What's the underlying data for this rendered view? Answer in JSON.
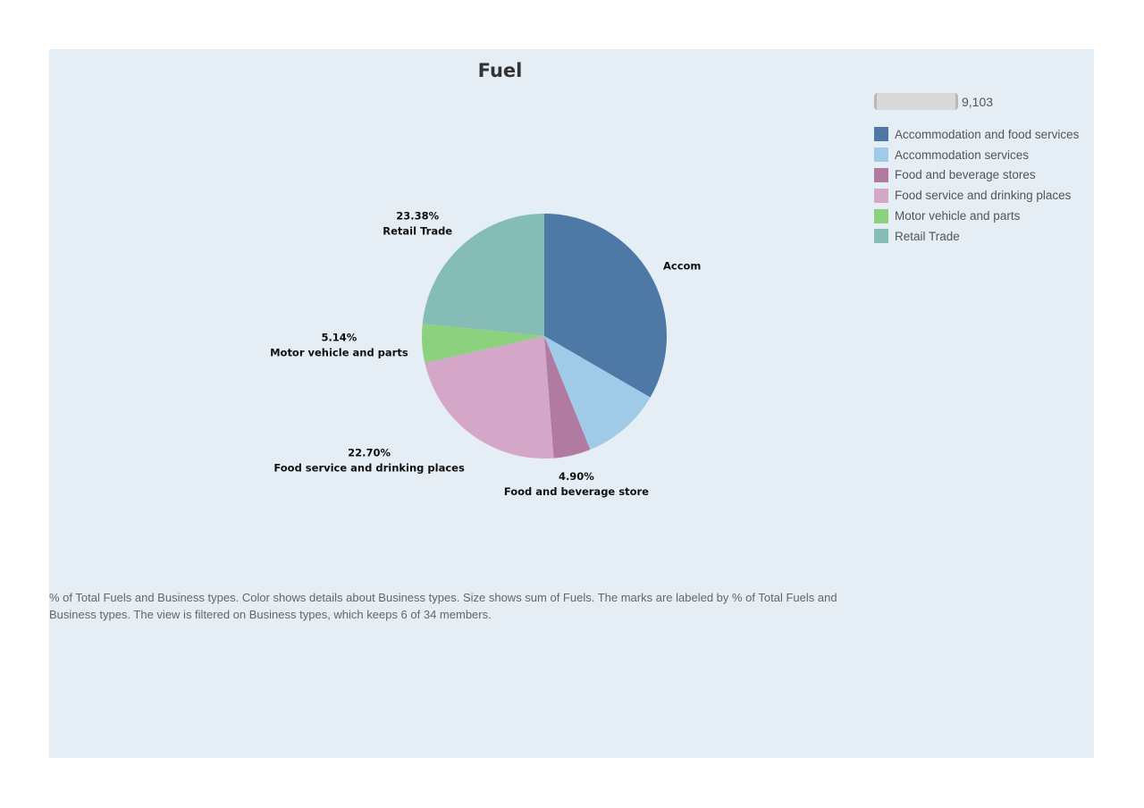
{
  "chart_data": {
    "type": "pie",
    "title": "Fuel",
    "categories": [
      "Accommodation and food services",
      "Accommodation services",
      "Food and beverage stores",
      "Food service and drinking places",
      "Motor vehicle and parts",
      "Retail Trade"
    ],
    "values": [
      33.35,
      10.53,
      4.9,
      22.7,
      5.14,
      23.38
    ],
    "colors": [
      "#4e79a7",
      "#a0cbe8",
      "#b07aa1",
      "#d4a6c8",
      "#8cd17d",
      "#86bcb6"
    ],
    "visible_labels": [
      {
        "pct": "",
        "name": "Accommo"
      },
      {
        "pct": "",
        "name": ""
      },
      {
        "pct": "4.90%",
        "name": "Food and beverage store"
      },
      {
        "pct": "22.70%",
        "name": "Food service and drinking places"
      },
      {
        "pct": "5.14%",
        "name": "Motor vehicle and parts"
      },
      {
        "pct": "23.38%",
        "name": "Retail Trade"
      }
    ],
    "legend_placement": "right",
    "size_legend_value": "9,103"
  },
  "caption": "% of Total Fuels and Business types.  Color shows details about Business types.  Size shows sum of Fuels.  The marks are labeled by % of Total Fuels and Business types. The view is filtered on Business types, which keeps 6 of 34 members."
}
